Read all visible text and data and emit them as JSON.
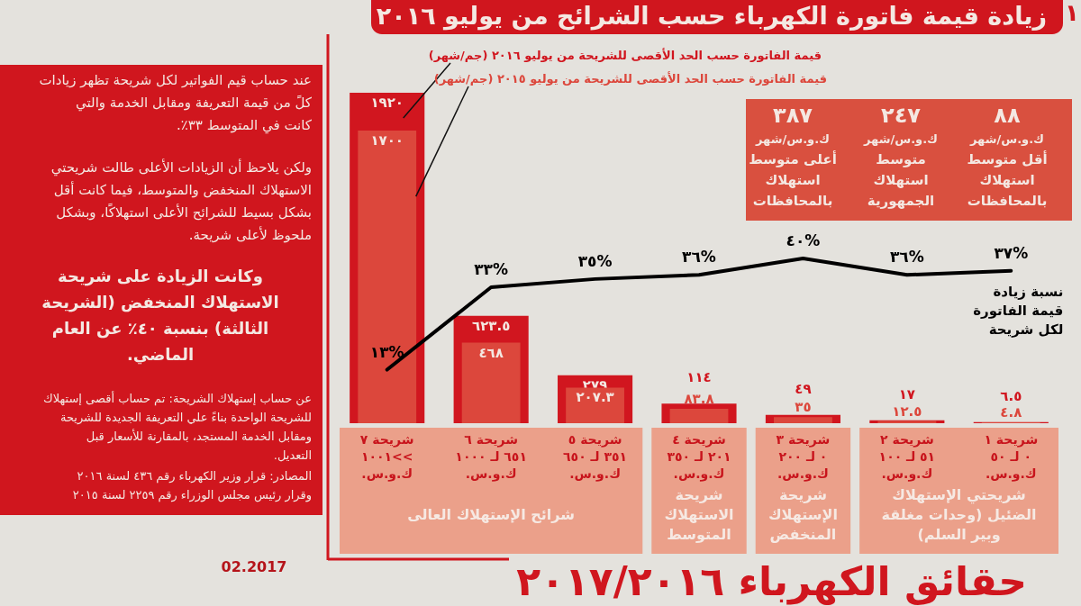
{
  "chart_data": {
    "type": "bar",
    "title": "زيادة قيمة فاتورة الكهرباء حسب الشرائح من يوليو ٢٠١٦",
    "subtitle": "حقائق الكهرباء ٢٠١٧/٢٠١٦",
    "categories": [
      "شريحة ٧\n>>١٠٠١\nك.و.س.",
      "شريحة ٦\n٦٥١ لـ ١٠٠٠\nك.و.س.",
      "شريحة ٥\n٣٥١ لـ ٦٥٠\nك.و.س.",
      "شريحة ٤\n٢٠١ لـ ٣٥٠\nك.و.س.",
      "شريحة ٣\n٠ لـ ٢٠٠\nك.و.س.",
      "شريحة ٢\n٥١ لـ ١٠٠\nك.و.س.",
      "شريحة ١\n٠ لـ ٥٠\nك.و.س."
    ],
    "series": [
      {
        "name": "قيمة الفاتورة حسب الحد الأقصى للشريحة من يوليو ٢٠١٦ (جم/شهر)",
        "color": "#d1161f",
        "values": [
          1920,
          623.5,
          279,
          114,
          49,
          17,
          6.5
        ],
        "value_labels": [
          "١٩٢٠",
          "٦٢٣.٥",
          "٢٧٩",
          "١١٤",
          "٤٩",
          "١٧",
          "٦.٥"
        ]
      },
      {
        "name": "قيمة الفاتورة حسب الحد الأقصى للشريحة من يوليو ٢٠١٥ (جم/شهر)",
        "color": "#dc473c",
        "values": [
          1700,
          468,
          207.3,
          83.8,
          35,
          12.5,
          4.8
        ],
        "value_labels": [
          "١٧٠٠",
          "٤٦٨",
          "٢٠٧.٣",
          "٨٣.٨",
          "٣٥",
          "١٢.٥",
          "٤.٨"
        ]
      },
      {
        "name": "نسبة زيادة قيمة الفاتورة لكل شريحة",
        "type": "line",
        "axis": "y2",
        "color": "#000000",
        "values": [
          13,
          33,
          35,
          36,
          40,
          36,
          37
        ],
        "value_labels": [
          "١٣%",
          "٣٣%",
          "٣٥%",
          "٣٦%",
          "٤٠%",
          "٣٦%",
          "٣٧%"
        ]
      }
    ],
    "tick_labels": "x",
    "annotations": [
      "عند حساب قيم الفواتير لكل شريحة تظهر زيادات كلً من قيمة التعريفة ومقابل الخدمة والتي كانت في المتوسط ٣٣٪.",
      "ولكن يلاحظ أن الزيادات الأعلى طالت شريحتي الاستهلاك المنخفض والمتوسط، فيما كانت أقل بشكل بسيط للشرائح الأعلى استهلاكًا، وبشكل ملحوظ لأعلى شريحة.",
      "وكانت الزيادة على شريحة الاستهلاك المنخفض (الشريحة الثالثة) بنسبة ٤٠٪ عن العام الماضي.",
      "عن حساب إستهلاك الشريحة: تم حساب أقصى إستهلاك للشريحة الواحدة بناءً علي التعريفة الجديدة للشريحة ومقابل الخدمة المستجد، بالمقارنة للأسعار قبل التعديل.",
      "المصادر: قرار وزير الكهرباء رقم ٤٣٦ لسنة ٢٠١٦ وقرار رئيس مجلس الوزراء رقم ٢٢٥٩ لسنة ٢٠١٥",
      "02.2017",
      "٨٨ ك.و.س/شهر أقل متوسط استهلاك بالمحافظات",
      "٢٤٧ ك.و.س/شهر متوسط استهلاك الجمهورية",
      "٣٨٧ ك.و.س/شهر أعلى متوسط استهلاك بالمحافظات",
      "شرائح الإستهلاك العالى",
      "شريحة الاستهلاك المتوسط",
      "شريحة الإستهلاك المنخفض",
      "شريحتي الإستهلاك الضئيل (وحدات مغلقة وبير السلم)",
      "١"
    ]
  }
}
